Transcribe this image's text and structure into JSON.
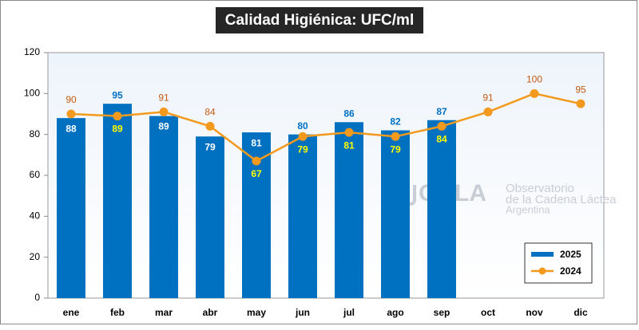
{
  "chart_data": {
    "type": "bar_line",
    "title": "Calidad Higiénica: UFC/ml",
    "categories": [
      "ene",
      "feb",
      "mar",
      "abr",
      "may",
      "jun",
      "jul",
      "ago",
      "sep",
      "oct",
      "nov",
      "dic"
    ],
    "series": [
      {
        "name": "2025",
        "type": "bar",
        "color": "#0070c0",
        "values": [
          88,
          95,
          89,
          79,
          81,
          80,
          86,
          82,
          87,
          null,
          null,
          null
        ]
      },
      {
        "name": "2024",
        "type": "line",
        "color": "#f39a1e",
        "values": [
          90,
          89,
          91,
          84,
          67,
          79,
          81,
          79,
          84,
          91,
          100,
          95
        ]
      }
    ],
    "ylim": [
      0,
      120
    ],
    "yticks": [
      0,
      20,
      40,
      60,
      80,
      100,
      120
    ],
    "grid": false,
    "legend": "lower right",
    "watermark": {
      "logo": "OCLA",
      "lines": [
        "Observatorio",
        "de la Cadena Láctea",
        "Argentina"
      ]
    }
  }
}
